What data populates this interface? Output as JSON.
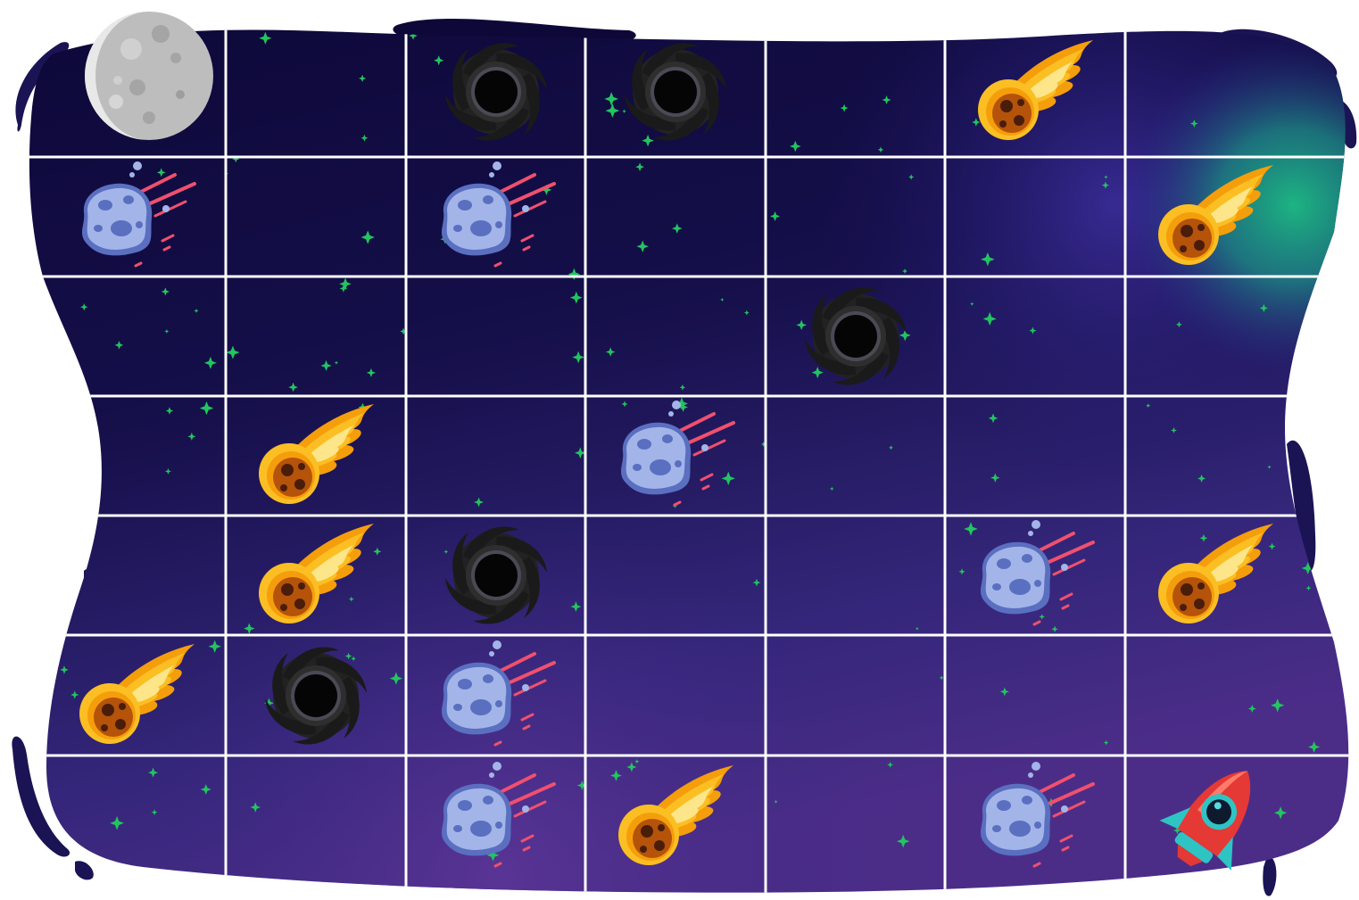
{
  "board": {
    "rows": 7,
    "cols": 7,
    "colors": {
      "space_dark": "#0f0a3a",
      "space_mid": "#2a1f6e",
      "space_light": "#4a2e86",
      "nebula_green": "#1db482",
      "grid_line": "#ffffff",
      "star": "#22c55e"
    },
    "cells": [
      [
        "moon",
        "empty",
        "black-hole",
        "black-hole",
        "empty",
        "comet",
        "empty"
      ],
      [
        "asteroid",
        "empty",
        "asteroid",
        "empty",
        "empty",
        "empty",
        "comet"
      ],
      [
        "empty",
        "empty",
        "empty",
        "empty",
        "black-hole",
        "empty",
        "empty"
      ],
      [
        "empty",
        "comet",
        "empty",
        "asteroid",
        "empty",
        "empty",
        "empty"
      ],
      [
        "empty",
        "comet",
        "black-hole",
        "empty",
        "empty",
        "asteroid",
        "comet"
      ],
      [
        "comet",
        "black-hole",
        "asteroid",
        "empty",
        "empty",
        "empty",
        "empty"
      ],
      [
        "empty",
        "empty",
        "asteroid",
        "comet",
        "empty",
        "asteroid",
        "rocket"
      ]
    ],
    "piece_icons": {
      "moon": "moon-icon",
      "black-hole": "black-hole-icon",
      "comet": "comet-icon",
      "asteroid": "asteroid-icon",
      "rocket": "rocket-icon"
    }
  }
}
